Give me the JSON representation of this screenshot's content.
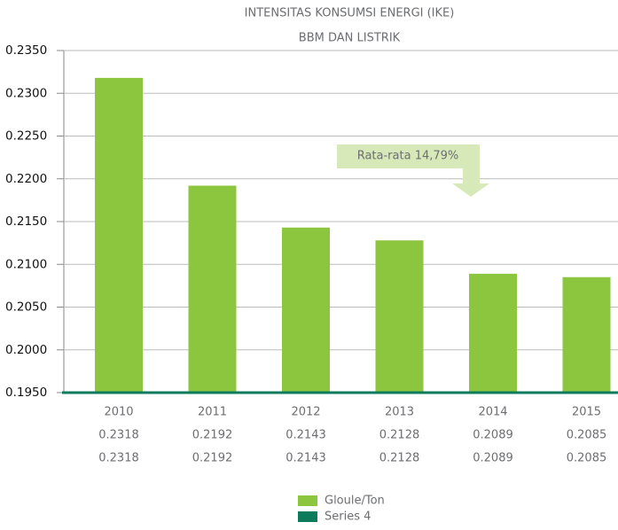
{
  "chart_data": {
    "type": "bar",
    "title": "INTENSITAS KONSUMSI ENERGI (IKE)",
    "subtitle": "BBM DAN LISTRIK",
    "categories": [
      "2010",
      "2011",
      "2012",
      "2013",
      "2014",
      "2015"
    ],
    "series": [
      {
        "name": "Gloule/Ton",
        "color": "#8cc63f",
        "values": [
          0.2318,
          0.2192,
          0.2143,
          0.2128,
          0.2089,
          0.2085
        ]
      },
      {
        "name": "Series 4",
        "color": "#0b7b5c"
      }
    ],
    "data_table": [
      [
        "0.2318",
        "0.2192",
        "0.2143",
        "0.2128",
        "0.2089",
        "0.2085"
      ],
      [
        "0.2318",
        "0.2192",
        "0.2143",
        "0.2128",
        "0.2089",
        "0.2085"
      ]
    ],
    "annotation": "Rata-rata 14,79%",
    "ylim": [
      0.195,
      0.235
    ],
    "yticks": [
      {
        "value": 0.195,
        "label": "0.1950"
      },
      {
        "value": 0.2,
        "label": "0.2000"
      },
      {
        "value": 0.205,
        "label": "0.2050"
      },
      {
        "value": 0.21,
        "label": "0.2100"
      },
      {
        "value": 0.215,
        "label": "0.2150"
      },
      {
        "value": 0.22,
        "label": "0.2200"
      },
      {
        "value": 0.225,
        "label": "0.2250"
      },
      {
        "value": 0.23,
        "label": "0.2300"
      },
      {
        "value": 0.235,
        "label": "0.2350"
      }
    ],
    "grid": true
  }
}
